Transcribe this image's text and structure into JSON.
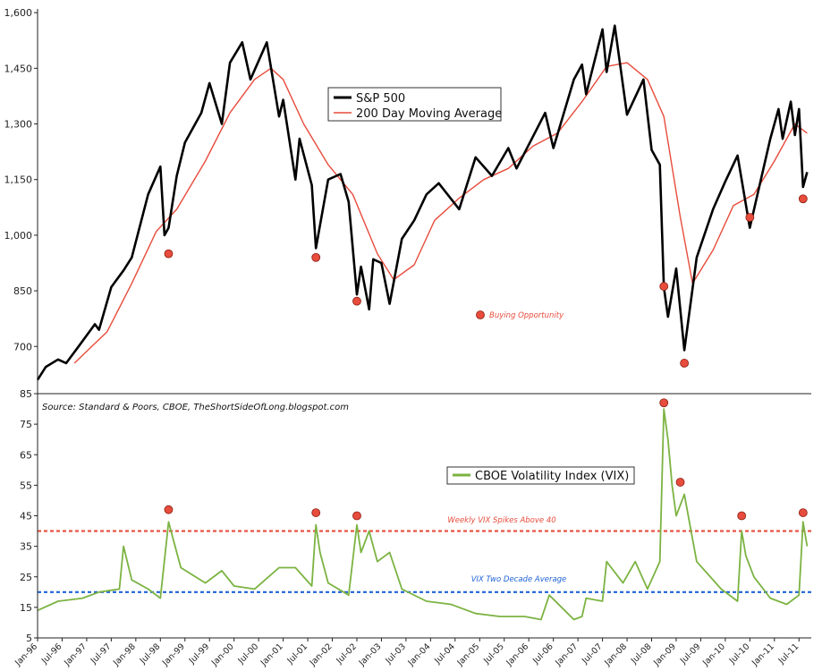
{
  "chart_data": [
    {
      "type": "line",
      "ylim": [
        580,
        1610
      ],
      "yticks": [
        700,
        850,
        1000,
        1150,
        1300,
        1450,
        1600
      ],
      "ytick_labels": [
        "700",
        "850",
        "1,000",
        "1,150",
        "1,300",
        "1,450",
        "1,600"
      ],
      "grid": false,
      "legend": "top-center",
      "series": [
        {
          "name": "S&P 500",
          "color": "#000000",
          "points": [
            [
              "1996-01",
              610
            ],
            [
              "1996-03",
              645
            ],
            [
              "1996-06",
              665
            ],
            [
              "1996-08",
              655
            ],
            [
              "1996-11",
              700
            ],
            [
              "1997-03",
              760
            ],
            [
              "1997-04",
              745
            ],
            [
              "1997-07",
              860
            ],
            [
              "1997-10",
              905
            ],
            [
              "1997-12",
              940
            ],
            [
              "1998-04",
              1110
            ],
            [
              "1998-07",
              1185
            ],
            [
              "1998-08",
              1000
            ],
            [
              "1998-09",
              1020
            ],
            [
              "1998-11",
              1160
            ],
            [
              "1999-01",
              1250
            ],
            [
              "1999-05",
              1330
            ],
            [
              "1999-07",
              1410
            ],
            [
              "1999-10",
              1300
            ],
            [
              "1999-12",
              1465
            ],
            [
              "2000-03",
              1520
            ],
            [
              "2000-05",
              1420
            ],
            [
              "2000-09",
              1520
            ],
            [
              "2000-12",
              1320
            ],
            [
              "2001-01",
              1365
            ],
            [
              "2001-04",
              1150
            ],
            [
              "2001-05",
              1260
            ],
            [
              "2001-08",
              1135
            ],
            [
              "2001-09",
              965
            ],
            [
              "2001-12",
              1150
            ],
            [
              "2002-03",
              1165
            ],
            [
              "2002-05",
              1090
            ],
            [
              "2002-07",
              840
            ],
            [
              "2002-08",
              915
            ],
            [
              "2002-10",
              800
            ],
            [
              "2002-11",
              935
            ],
            [
              "2003-01",
              925
            ],
            [
              "2003-03",
              815
            ],
            [
              "2003-06",
              990
            ],
            [
              "2003-09",
              1040
            ],
            [
              "2003-12",
              1110
            ],
            [
              "2004-03",
              1140
            ],
            [
              "2004-08",
              1070
            ],
            [
              "2004-12",
              1210
            ],
            [
              "2005-04",
              1160
            ],
            [
              "2005-08",
              1235
            ],
            [
              "2005-10",
              1180
            ],
            [
              "2006-05",
              1330
            ],
            [
              "2006-07",
              1235
            ],
            [
              "2006-12",
              1420
            ],
            [
              "2007-02",
              1460
            ],
            [
              "2007-03",
              1380
            ],
            [
              "2007-07",
              1555
            ],
            [
              "2007-08",
              1440
            ],
            [
              "2007-10",
              1565
            ],
            [
              "2008-01",
              1325
            ],
            [
              "2008-05",
              1420
            ],
            [
              "2008-07",
              1230
            ],
            [
              "2008-09",
              1190
            ],
            [
              "2008-10",
              860
            ],
            [
              "2008-11",
              780
            ],
            [
              "2009-01",
              910
            ],
            [
              "2009-03",
              690
            ],
            [
              "2009-06",
              940
            ],
            [
              "2009-10",
              1070
            ],
            [
              "2010-01",
              1145
            ],
            [
              "2010-04",
              1215
            ],
            [
              "2010-07",
              1020
            ],
            [
              "2010-12",
              1260
            ],
            [
              "2011-02",
              1340
            ],
            [
              "2011-03",
              1260
            ],
            [
              "2011-05",
              1360
            ],
            [
              "2011-06",
              1270
            ],
            [
              "2011-07",
              1340
            ],
            [
              "2011-08",
              1130
            ],
            [
              "2011-09",
              1170
            ]
          ]
        },
        {
          "name": "200 Day Moving Average",
          "color": "#e74c3c",
          "points": [
            [
              "1996-10",
              655
            ],
            [
              "1997-06",
              740
            ],
            [
              "1997-12",
              870
            ],
            [
              "1998-06",
              1010
            ],
            [
              "1998-11",
              1070
            ],
            [
              "1999-06",
              1200
            ],
            [
              "1999-12",
              1330
            ],
            [
              "2000-06",
              1420
            ],
            [
              "2000-10",
              1450
            ],
            [
              "2001-01",
              1420
            ],
            [
              "2001-06",
              1300
            ],
            [
              "2001-12",
              1190
            ],
            [
              "2002-06",
              1110
            ],
            [
              "2002-12",
              950
            ],
            [
              "2003-04",
              880
            ],
            [
              "2003-09",
              920
            ],
            [
              "2004-02",
              1040
            ],
            [
              "2004-08",
              1100
            ],
            [
              "2005-02",
              1150
            ],
            [
              "2005-08",
              1180
            ],
            [
              "2006-02",
              1240
            ],
            [
              "2006-08",
              1275
            ],
            [
              "2007-02",
              1360
            ],
            [
              "2007-08",
              1455
            ],
            [
              "2008-01",
              1465
            ],
            [
              "2008-06",
              1420
            ],
            [
              "2008-10",
              1320
            ],
            [
              "2009-02",
              1050
            ],
            [
              "2009-05",
              870
            ],
            [
              "2009-10",
              960
            ],
            [
              "2010-03",
              1080
            ],
            [
              "2010-08",
              1110
            ],
            [
              "2011-01",
              1200
            ],
            [
              "2011-06",
              1300
            ],
            [
              "2011-09",
              1275
            ]
          ]
        }
      ],
      "markers": {
        "name": "Buying Opportunity",
        "color": "#e74c3c",
        "points": [
          [
            "1998-09",
            950
          ],
          [
            "2001-09",
            940
          ],
          [
            "2002-07",
            822
          ],
          [
            "2008-10",
            862
          ],
          [
            "2009-03",
            655
          ],
          [
            "2010-07",
            1048
          ],
          [
            "2011-08",
            1098
          ]
        ]
      }
    },
    {
      "type": "line",
      "ylim": [
        5,
        85
      ],
      "yticks": [
        5,
        15,
        25,
        35,
        45,
        55,
        65,
        75,
        85
      ],
      "grid": false,
      "legend": "top-center",
      "series": [
        {
          "name": "CBOE Volatility Index (VIX)",
          "color": "#7cb342",
          "points": [
            [
              "1996-01",
              14
            ],
            [
              "1996-06",
              17
            ],
            [
              "1996-12",
              18
            ],
            [
              "1997-04",
              20
            ],
            [
              "1997-09",
              21
            ],
            [
              "1997-10",
              35
            ],
            [
              "1997-12",
              24
            ],
            [
              "1998-04",
              21
            ],
            [
              "1998-07",
              18
            ],
            [
              "1998-09",
              43
            ],
            [
              "1998-10",
              38
            ],
            [
              "1998-12",
              28
            ],
            [
              "1999-06",
              23
            ],
            [
              "1999-10",
              27
            ],
            [
              "2000-01",
              22
            ],
            [
              "2000-06",
              21
            ],
            [
              "2000-12",
              28
            ],
            [
              "2001-04",
              28
            ],
            [
              "2001-08",
              22
            ],
            [
              "2001-09",
              42
            ],
            [
              "2001-10",
              33
            ],
            [
              "2001-12",
              23
            ],
            [
              "2002-05",
              19
            ],
            [
              "2002-07",
              42
            ],
            [
              "2002-08",
              33
            ],
            [
              "2002-10",
              40
            ],
            [
              "2002-12",
              30
            ],
            [
              "2003-03",
              33
            ],
            [
              "2003-06",
              21
            ],
            [
              "2003-12",
              17
            ],
            [
              "2004-06",
              16
            ],
            [
              "2004-12",
              13
            ],
            [
              "2005-06",
              12
            ],
            [
              "2005-12",
              12
            ],
            [
              "2006-04",
              11
            ],
            [
              "2006-06",
              19
            ],
            [
              "2006-12",
              11
            ],
            [
              "2007-02",
              12
            ],
            [
              "2007-03",
              18
            ],
            [
              "2007-07",
              17
            ],
            [
              "2007-08",
              30
            ],
            [
              "2007-12",
              23
            ],
            [
              "2008-03",
              30
            ],
            [
              "2008-06",
              21
            ],
            [
              "2008-09",
              30
            ],
            [
              "2008-10",
              80
            ],
            [
              "2008-11",
              70
            ],
            [
              "2008-12",
              55
            ],
            [
              "2009-01",
              45
            ],
            [
              "2009-03",
              52
            ],
            [
              "2009-06",
              30
            ],
            [
              "2009-12",
              21
            ],
            [
              "2010-04",
              17
            ],
            [
              "2010-05",
              40
            ],
            [
              "2010-06",
              32
            ],
            [
              "2010-08",
              25
            ],
            [
              "2010-12",
              18
            ],
            [
              "2011-04",
              16
            ],
            [
              "2011-07",
              19
            ],
            [
              "2011-08",
              43
            ],
            [
              "2011-09",
              35
            ]
          ]
        }
      ],
      "markers": {
        "color": "#e74c3c",
        "points": [
          [
            "1998-09",
            47
          ],
          [
            "2001-09",
            46
          ],
          [
            "2002-07",
            45
          ],
          [
            "2008-10",
            82
          ],
          [
            "2009-02",
            56
          ],
          [
            "2010-05",
            45
          ],
          [
            "2011-08",
            46
          ]
        ]
      },
      "reference_lines": [
        {
          "label": "Weekly VIX Spikes Above 40",
          "value": 40,
          "color": "#e74c3c"
        },
        {
          "label": "VIX Two Decade Average",
          "value": 20,
          "color": "#1e63d6"
        }
      ]
    }
  ],
  "x_axis": {
    "tick_labels": [
      "Jan-96",
      "Jul-96",
      "Jan-97",
      "Jul-97",
      "Jan-98",
      "Jul-98",
      "Jan-99",
      "Jul-99",
      "Jan-00",
      "Jul-00",
      "Jan-01",
      "Jul-01",
      "Jan-02",
      "Jul-02",
      "Jan-03",
      "Jul-03",
      "Jan-04",
      "Jul-04",
      "Jan-05",
      "Jul-05",
      "Jan-06",
      "Jul-06",
      "Jan-07",
      "Jul-07",
      "Jan-08",
      "Jul-08",
      "Jan-09",
      "Jul-09",
      "Jan-10",
      "Jul-10",
      "Jan-11",
      "Jul-11"
    ]
  },
  "source": "Source: Standard & Poors, CBOE, TheShortSideOfLong.blogspot.com",
  "vix_labels": [
    "5",
    "15",
    "25",
    "35",
    "45",
    "55",
    "65",
    "75",
    "85"
  ]
}
